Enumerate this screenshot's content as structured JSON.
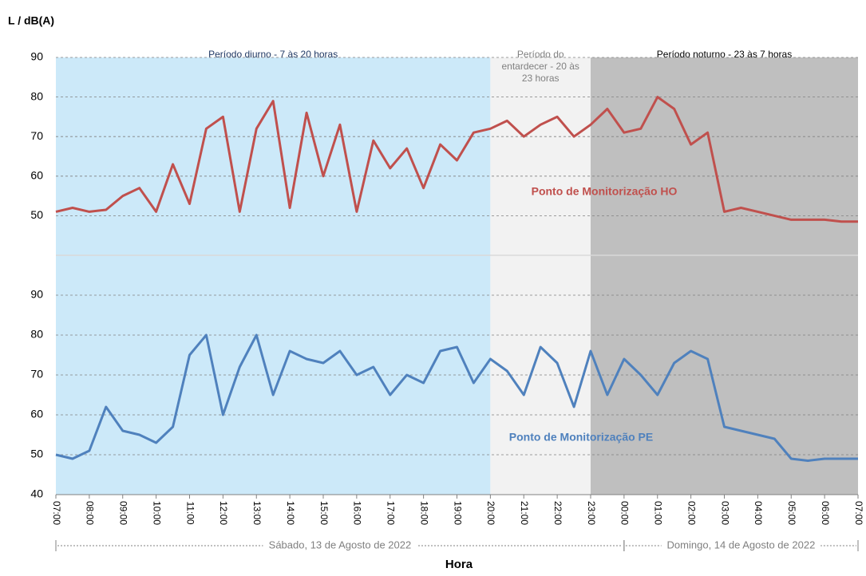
{
  "chart_data": {
    "type": "line",
    "y_label": "L  / dB(A)",
    "x_label": "Hora",
    "xlim": [
      0,
      24
    ],
    "xticks": [
      {
        "value": 0,
        "label": "07:00"
      },
      {
        "value": 1,
        "label": "08:00"
      },
      {
        "value": 2,
        "label": "09:00"
      },
      {
        "value": 3,
        "label": "10:00"
      },
      {
        "value": 4,
        "label": "11:00"
      },
      {
        "value": 5,
        "label": "12:00"
      },
      {
        "value": 6,
        "label": "13:00"
      },
      {
        "value": 7,
        "label": "14:00"
      },
      {
        "value": 8,
        "label": "15:00"
      },
      {
        "value": 9,
        "label": "16:00"
      },
      {
        "value": 10,
        "label": "17:00"
      },
      {
        "value": 11,
        "label": "18:00"
      },
      {
        "value": 12,
        "label": "19:00"
      },
      {
        "value": 13,
        "label": "20:00"
      },
      {
        "value": 14,
        "label": "21:00"
      },
      {
        "value": 15,
        "label": "22:00"
      },
      {
        "value": 16,
        "label": "23:00"
      },
      {
        "value": 17,
        "label": "00:00"
      },
      {
        "value": 18,
        "label": "01:00"
      },
      {
        "value": 19,
        "label": "02:00"
      },
      {
        "value": 20,
        "label": "03:00"
      },
      {
        "value": 21,
        "label": "04:00"
      },
      {
        "value": 22,
        "label": "05:00"
      },
      {
        "value": 23,
        "label": "06:00"
      },
      {
        "value": 24,
        "label": "07:00"
      }
    ],
    "periods": [
      {
        "lines": [
          "Período diurno - 7 às 20 horas"
        ],
        "start": 0,
        "end": 13,
        "color": "#cce9f9"
      },
      {
        "lines": [
          "Período do",
          "entardecer - 20 às",
          "23 horas"
        ],
        "start": 13,
        "end": 16,
        "color": "#f2f2f2"
      },
      {
        "lines": [
          "Período noturno - 23 às 7 horas"
        ],
        "start": 16,
        "end": 24,
        "color": "#bfbfbf"
      }
    ],
    "dates": [
      "Sábado, 13 de Agosto de 2022",
      "Domingo, 14 de Agosto de 2022"
    ],
    "x": [
      0,
      0.5,
      1,
      1.5,
      2,
      2.5,
      3,
      3.5,
      4,
      4.5,
      5,
      5.5,
      6,
      6.5,
      7,
      7.5,
      8,
      8.5,
      9,
      9.5,
      10,
      10.5,
      11,
      11.5,
      12,
      12.5,
      13,
      13.5,
      14,
      14.5,
      15,
      15.5,
      16,
      16.5,
      17,
      17.5,
      18,
      18.5,
      19,
      19.5,
      20,
      20.5,
      21,
      21.5,
      22,
      22.5,
      23,
      23.5,
      24
    ],
    "series": [
      {
        "name": "Ponto de Monitorização  HO",
        "color": "#c0504d",
        "ylim": [
          40,
          90
        ],
        "yticks": [
          50,
          60,
          70,
          80,
          90
        ],
        "values": [
          51,
          52,
          51,
          51.5,
          55,
          57,
          51,
          63,
          53,
          72,
          75,
          51,
          72,
          79,
          52,
          76,
          60,
          73,
          51,
          69,
          62,
          67,
          57,
          68,
          64,
          71,
          72,
          74,
          70,
          73,
          75,
          70,
          73,
          77,
          71,
          72,
          80,
          77,
          68,
          71,
          51,
          52,
          51,
          50,
          49,
          49,
          49,
          48.5,
          48.5
        ]
      },
      {
        "name": "Ponto de Monitorização  PE",
        "color": "#4f81bd",
        "ylim": [
          40,
          90
        ],
        "yticks": [
          40,
          50,
          60,
          70,
          80,
          90
        ],
        "values": [
          50,
          49,
          51,
          62,
          56,
          55,
          53,
          57,
          75,
          80,
          60,
          72,
          80,
          65,
          76,
          74,
          73,
          76,
          70,
          72,
          65,
          70,
          68,
          76,
          77,
          68,
          74,
          71,
          65,
          77,
          73,
          62,
          76,
          65,
          74,
          70,
          65,
          73,
          76,
          74,
          57,
          56,
          55,
          54,
          49,
          48.5,
          49,
          49,
          49
        ]
      }
    ]
  }
}
